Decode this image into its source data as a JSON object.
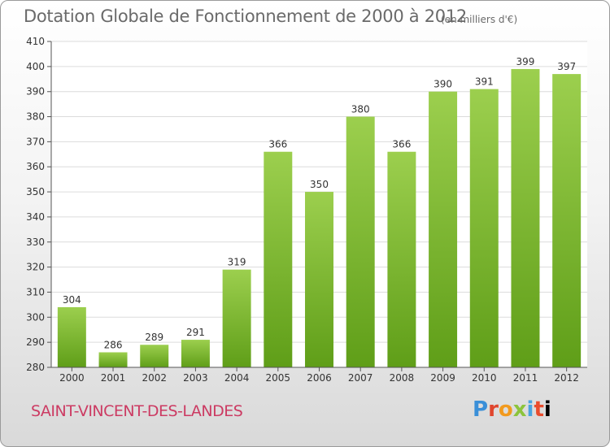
{
  "title": "Dotation Globale de Fonctionnement de 2000 à 2012",
  "unit_note": "(en milliers d'€)",
  "commune": "SAINT-VINCENT-DES-LANDES",
  "logo": {
    "letters": [
      "P",
      "r",
      "o",
      "x",
      "i",
      "t",
      "i"
    ]
  },
  "colors": {
    "bar_top": "#9ccf4e",
    "bar_bottom": "#5f9e18",
    "title": "#6a6a6a",
    "commune": "#cc3b63"
  },
  "chart_data": {
    "type": "bar",
    "categories": [
      "2000",
      "2001",
      "2002",
      "2003",
      "2004",
      "2005",
      "2006",
      "2007",
      "2008",
      "2009",
      "2010",
      "2011",
      "2012"
    ],
    "values": [
      304,
      286,
      289,
      291,
      319,
      366,
      350,
      380,
      366,
      390,
      391,
      399,
      397
    ],
    "data_labels": [
      "304",
      "286",
      "289",
      "291",
      "319",
      "366",
      "350",
      "380",
      "366",
      "390",
      "391",
      "399",
      "397"
    ],
    "ylim": [
      280,
      410
    ],
    "yticks": [
      280,
      290,
      300,
      310,
      320,
      330,
      340,
      350,
      360,
      370,
      380,
      390,
      400,
      410
    ],
    "grid": true
  }
}
